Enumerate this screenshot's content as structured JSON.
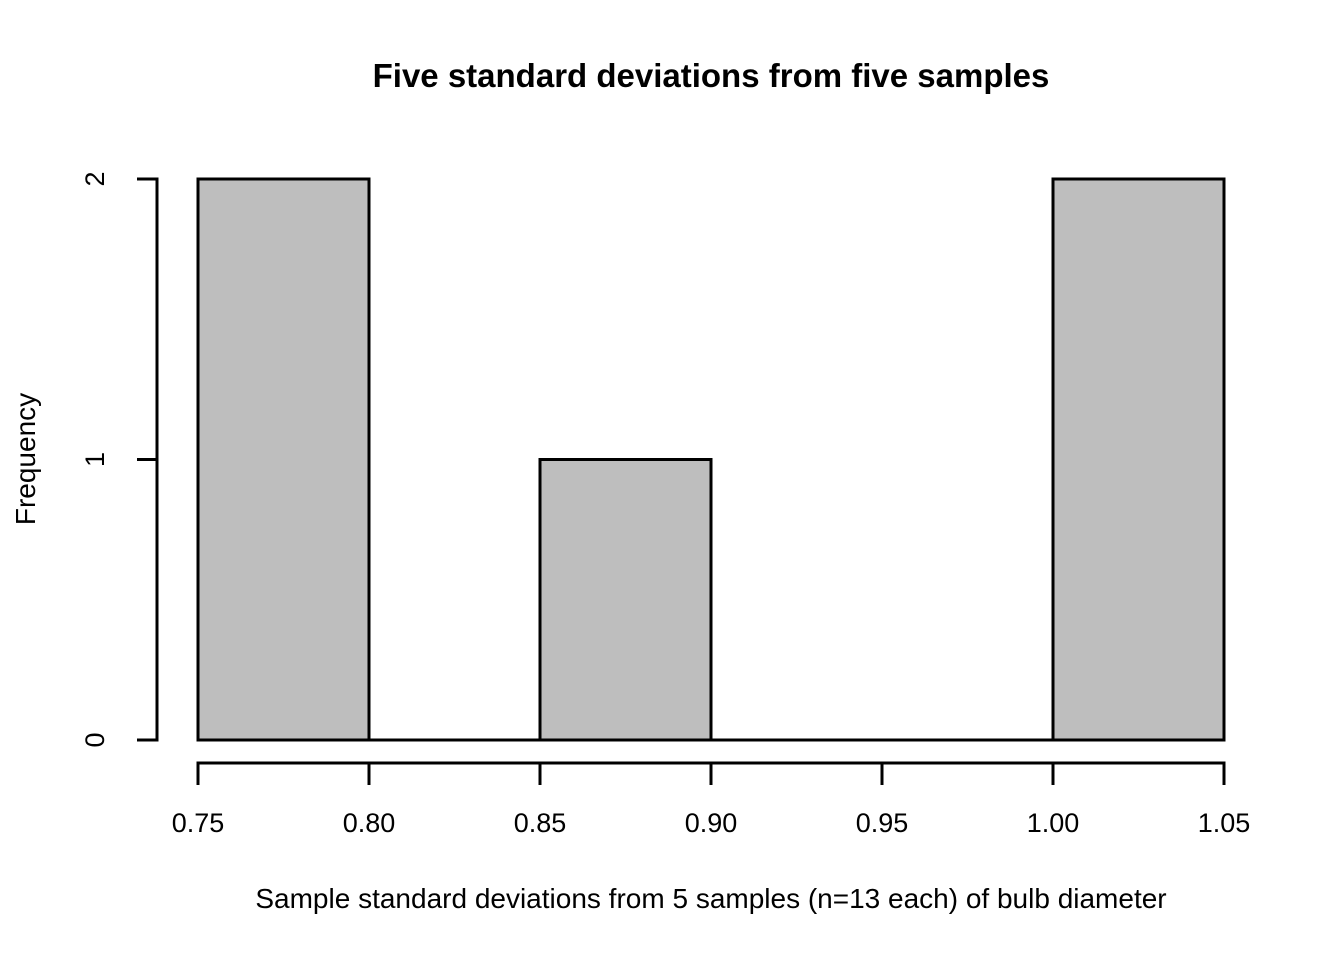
{
  "chart": {
    "title": "Five standard deviations from five samples",
    "xlabel": "Sample standard deviations from 5 samples (n=13 each) of bulb diameter",
    "ylabel": "Frequency"
  },
  "chart_data": {
    "type": "bar",
    "subtype": "histogram",
    "title": "Five standard deviations from five samples",
    "xlabel": "Sample standard deviations from 5 samples (n=13 each) of bulb diameter",
    "ylabel": "Frequency",
    "bins": [
      {
        "start": 0.75,
        "end": 0.8,
        "count": 2
      },
      {
        "start": 0.8,
        "end": 0.85,
        "count": 0
      },
      {
        "start": 0.85,
        "end": 0.9,
        "count": 1
      },
      {
        "start": 0.9,
        "end": 0.95,
        "count": 0
      },
      {
        "start": 0.95,
        "end": 1.0,
        "count": 0
      },
      {
        "start": 1.0,
        "end": 1.05,
        "count": 2
      }
    ],
    "x_ticks": [
      {
        "value": 0.75,
        "label": "0.75"
      },
      {
        "value": 0.8,
        "label": "0.80"
      },
      {
        "value": 0.85,
        "label": "0.85"
      },
      {
        "value": 0.9,
        "label": "0.90"
      },
      {
        "value": 0.95,
        "label": "0.95"
      },
      {
        "value": 1.0,
        "label": "1.00"
      },
      {
        "value": 1.05,
        "label": "1.05"
      }
    ],
    "y_ticks": [
      {
        "value": 0,
        "label": "0"
      },
      {
        "value": 1,
        "label": "1"
      },
      {
        "value": 2,
        "label": "2"
      }
    ],
    "xlim": [
      0.75,
      1.05
    ],
    "ylim": [
      0,
      2
    ],
    "grid": false,
    "legend": null,
    "colors": {
      "bar_fill": "#bebebe",
      "bar_border": "#000000",
      "axis": "#000000",
      "text": "#000000",
      "background": "#ffffff"
    }
  }
}
